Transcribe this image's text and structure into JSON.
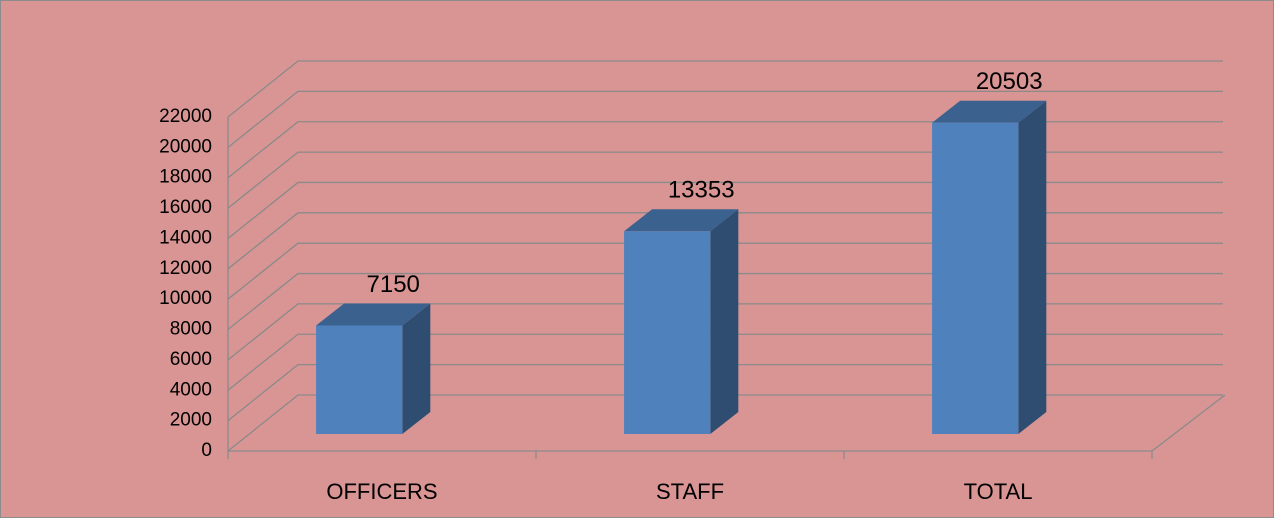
{
  "chart_data": {
    "type": "bar",
    "categories": [
      "OFFICERS",
      "STAFF",
      "TOTAL"
    ],
    "values": [
      7150,
      13353,
      20503
    ],
    "ylim": [
      0,
      22000
    ],
    "yticks": [
      0,
      2000,
      4000,
      6000,
      8000,
      10000,
      12000,
      14000,
      16000,
      18000,
      20000,
      22000
    ],
    "grid": true,
    "color": "#4f81bd",
    "background": "#d99594"
  }
}
